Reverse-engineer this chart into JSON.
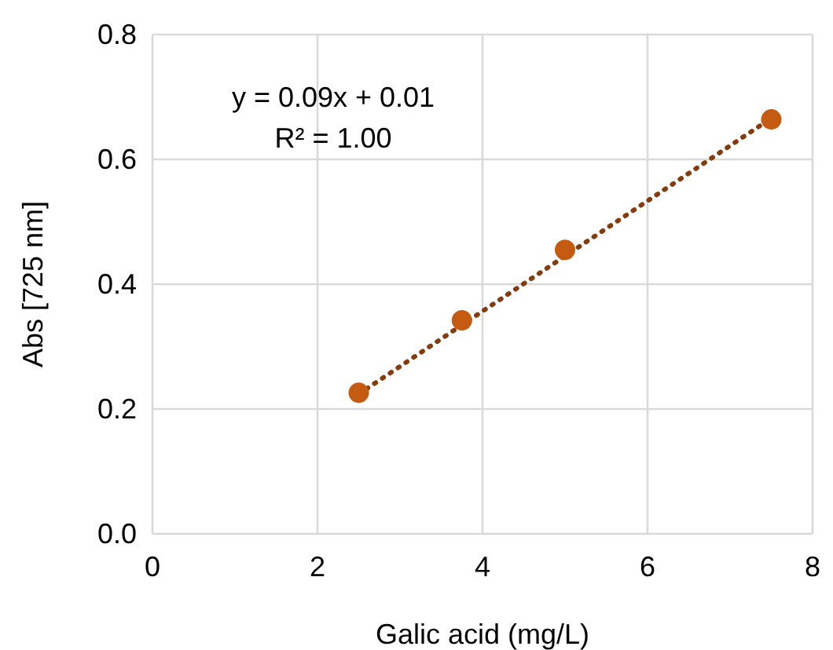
{
  "chart_data": {
    "type": "scatter",
    "xlabel": "Galic acid (mg/L)",
    "ylabel": "Abs [725 nm]",
    "xlim": [
      0,
      8
    ],
    "ylim": [
      0,
      0.8
    ],
    "xticks": [
      0,
      2,
      4,
      6,
      8
    ],
    "yticks": [
      {
        "value": 0,
        "label": "0.0"
      },
      {
        "value": 0.2,
        "label": "0.2"
      },
      {
        "value": 0.4,
        "label": "0.4"
      },
      {
        "value": 0.6,
        "label": "0.6"
      },
      {
        "value": 0.8,
        "label": "0.8"
      }
    ],
    "grid": true,
    "annotations": [
      "y = 0.09x + 0.01",
      "R² = 1.00"
    ],
    "series": [
      {
        "type": "line",
        "color": "#843c0c",
        "x": [
          2.5,
          7.5
        ],
        "values": [
          0.224,
          0.666
        ],
        "line_style": "dotted",
        "marker": "none"
      },
      {
        "color": "#c55a11",
        "x": [
          2.5,
          3.75,
          5,
          7.5
        ],
        "values": [
          0.226,
          0.342,
          0.455,
          0.664
        ],
        "marker": "circle"
      }
    ]
  }
}
